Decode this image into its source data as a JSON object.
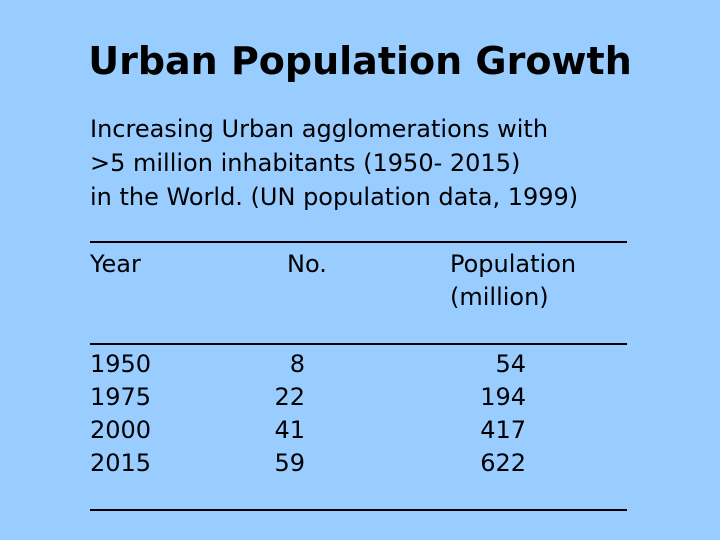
{
  "slide": {
    "title": "Urban Population Growth",
    "intro": [
      "Increasing Urban agglomerations with",
      ">5 million inhabitants (1950- 2015)",
      "in the World. (UN population data, 1999)"
    ]
  },
  "table": {
    "headers": {
      "year": "Year",
      "count": "No.",
      "population_line1": "Population",
      "population_line2": "(million)"
    },
    "rows": [
      {
        "year": "1950",
        "count": "8",
        "population": "54"
      },
      {
        "year": "1975",
        "count": "22",
        "population": "194"
      },
      {
        "year": "2000",
        "count": "41",
        "population": "417"
      },
      {
        "year": "2015",
        "count": "59",
        "population": "622"
      }
    ]
  }
}
